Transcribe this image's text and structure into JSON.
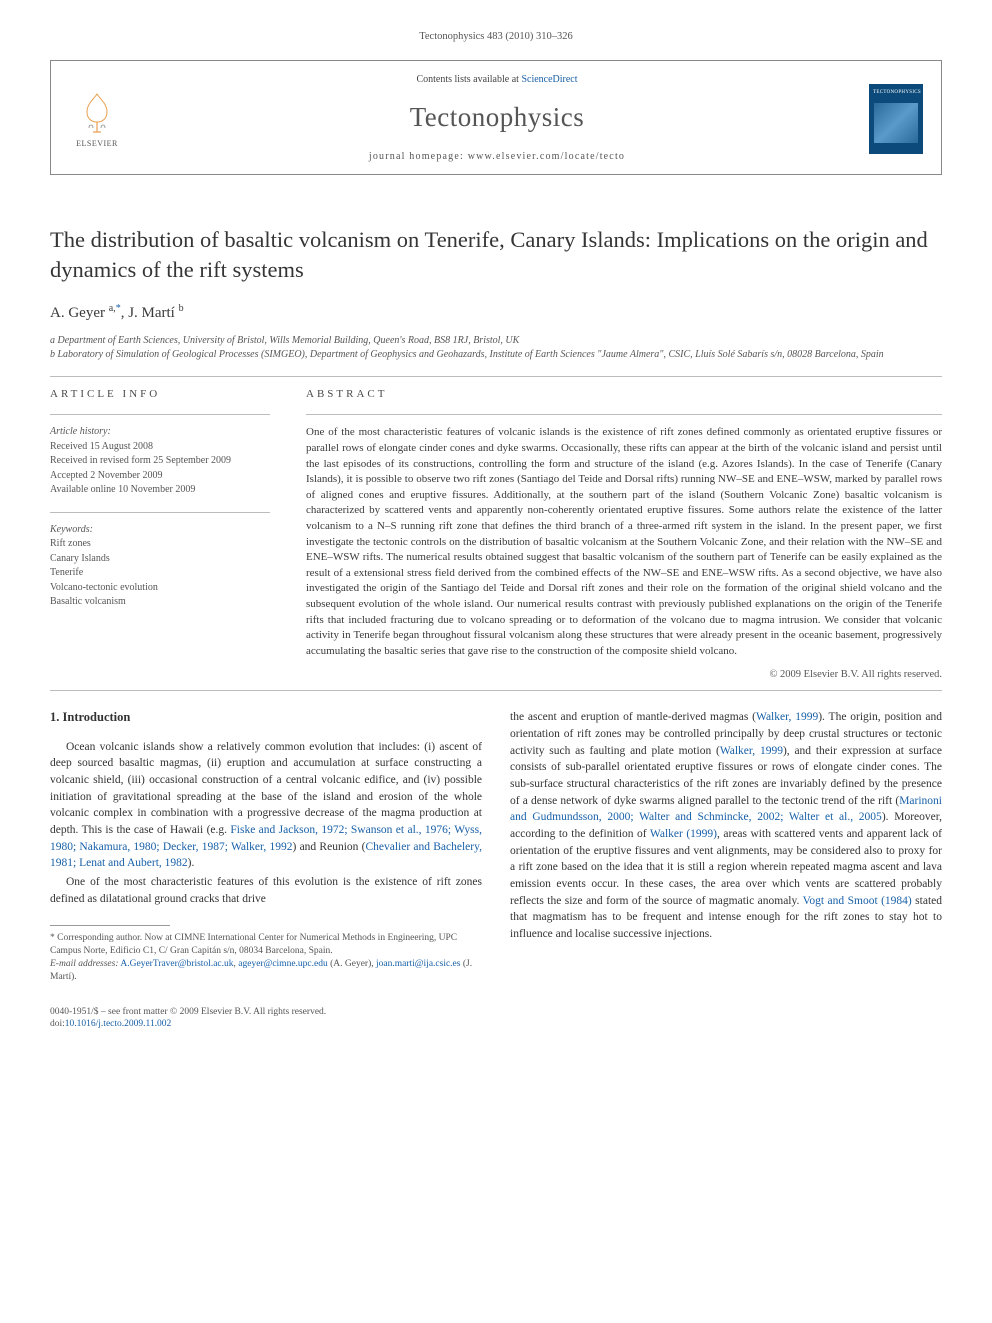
{
  "colors": {
    "link": "#1860a8",
    "text": "#333333",
    "muted": "#555555",
    "rule": "#bcbcbc",
    "cover_bg": "#0b4a7a",
    "elsevier_orange": "#e87a2e"
  },
  "running_header": "Tectonophysics 483 (2010) 310–326",
  "masthead": {
    "publisher": "ELSEVIER",
    "contents_prefix": "Contents lists available at ",
    "contents_link": "ScienceDirect",
    "journal": "Tectonophysics",
    "homepage_prefix": "journal homepage: ",
    "homepage_url": "www.elsevier.com/locate/tecto",
    "cover_label": "TECTONOPHYSICS"
  },
  "article": {
    "title": "The distribution of basaltic volcanism on Tenerife, Canary Islands: Implications on the origin and dynamics of the rift systems",
    "authors_html": "A. Geyer <sup>a,</sup><sup class=\"corr\">*</sup>, J. Martí <sup>b</sup>",
    "affiliations": [
      "a Department of Earth Sciences, University of Bristol, Wills Memorial Building, Queen's Road, BS8 1RJ, Bristol, UK",
      "b Laboratory of Simulation of Geological Processes (SIMGEO), Department of Geophysics and Geohazards, Institute of Earth Sciences \"Jaume Almera\", CSIC, Lluís Solé Sabarís s/n, 08028 Barcelona, Spain"
    ]
  },
  "info": {
    "label": "ARTICLE INFO",
    "history_label": "Article history:",
    "history": [
      "Received 15 August 2008",
      "Received in revised form 25 September 2009",
      "Accepted 2 November 2009",
      "Available online 10 November 2009"
    ],
    "keywords_label": "Keywords:",
    "keywords": [
      "Rift zones",
      "Canary Islands",
      "Tenerife",
      "Volcano-tectonic evolution",
      "Basaltic volcanism"
    ]
  },
  "abstract": {
    "label": "ABSTRACT",
    "text": "One of the most characteristic features of volcanic islands is the existence of rift zones defined commonly as orientated eruptive fissures or parallel rows of elongate cinder cones and dyke swarms. Occasionally, these rifts can appear at the birth of the volcanic island and persist until the last episodes of its constructions, controlling the form and structure of the island (e.g. Azores Islands). In the case of Tenerife (Canary Islands), it is possible to observe two rift zones (Santiago del Teide and Dorsal rifts) running NW–SE and ENE–WSW, marked by parallel rows of aligned cones and eruptive fissures. Additionally, at the southern part of the island (Southern Volcanic Zone) basaltic volcanism is characterized by scattered vents and apparently non-coherently orientated eruptive fissures. Some authors relate the existence of the latter volcanism to a N–S running rift zone that defines the third branch of a three-armed rift system in the island. In the present paper, we first investigate the tectonic controls on the distribution of basaltic volcanism at the Southern Volcanic Zone, and their relation with the NW–SE and ENE–WSW rifts. The numerical results obtained suggest that basaltic volcanism of the southern part of Tenerife can be easily explained as the result of a extensional stress field derived from the combined effects of the NW–SE and ENE–WSW rifts. As a second objective, we have also investigated the origin of the Santiago del Teide and Dorsal rift zones and their role on the formation of the original shield volcano and the subsequent evolution of the whole island. Our numerical results contrast with previously published explanations on the origin of the Tenerife rifts that included fracturing due to volcano spreading or to deformation of the volcano due to magma intrusion. We consider that volcanic activity in Tenerife began throughout fissural volcanism along these structures that were already present in the oceanic basement, progressively accumulating the basaltic series that gave rise to the construction of the composite shield volcano.",
    "copyright": "© 2009 Elsevier B.V. All rights reserved."
  },
  "body": {
    "heading": "1. Introduction",
    "col1_p1": "Ocean volcanic islands show a relatively common evolution that includes: (i) ascent of deep sourced basaltic magmas, (ii) eruption and accumulation at surface constructing a volcanic shield, (iii) occasional construction of a central volcanic edifice, and (iv) possible initiation of gravitational spreading at the base of the island and erosion of the whole volcanic complex in combination with a progressive decrease of the magma production at depth. This is the case of Hawaii (e.g. <a>Fiske and Jackson, 1972; Swanson et al., 1976; Wyss, 1980; Nakamura, 1980; Decker, 1987; Walker, 1992</a>) and Reunion (<a>Chevalier and Bachelery, 1981; Lenat and Aubert, 1982</a>).",
    "col1_p2": "One of the most characteristic features of this evolution is the existence of rift zones defined as dilatational ground cracks that drive",
    "col2_p1": "the ascent and eruption of mantle-derived magmas (<a>Walker, 1999</a>). The origin, position and orientation of rift zones may be controlled principally by deep crustal structures or tectonic activity such as faulting and plate motion (<a>Walker, 1999</a>), and their expression at surface consists of sub-parallel orientated eruptive fissures or rows of elongate cinder cones. The sub-surface structural characteristics of the rift zones are invariably defined by the presence of a dense network of dyke swarms aligned parallel to the tectonic trend of the rift (<a>Marinoni and Gudmundsson, 2000; Walter and Schmincke, 2002; Walter et al., 2005</a>). Moreover, according to the definition of <a>Walker (1999)</a>, areas with scattered vents and apparent lack of orientation of the eruptive fissures and vent alignments, may be considered also to proxy for a rift zone based on the idea that it is still a region wherein repeated magma ascent and lava emission events occur. In these cases, the area over which vents are scattered probably reflects the size and form of the source of magmatic anomaly. <a>Vogt and Smoot (1984)</a> stated that magmatism has to be frequent and intense enough for the rift zones to stay hot to influence and localise successive injections."
  },
  "footnote": {
    "corr_label": "* Corresponding author. Now at CIMNE International Center for Numerical Methods in Engineering, UPC Campus Norte, Edificio C1, C/ Gran Capitán s/n, 08034 Barcelona, Spain.",
    "email_label": "E-mail addresses:",
    "email1": "A.GeyerTraver@bristol.ac.uk",
    "email2": "ageyer@cimne.upc.edu",
    "email1_owner": " (A. Geyer), ",
    "email3": "joan.marti@ija.csic.es",
    "email3_owner": " (J. Martí)."
  },
  "footer": {
    "line1": "0040-1951/$ – see front matter © 2009 Elsevier B.V. All rights reserved.",
    "doi_prefix": "doi:",
    "doi": "10.1016/j.tecto.2009.11.002"
  }
}
